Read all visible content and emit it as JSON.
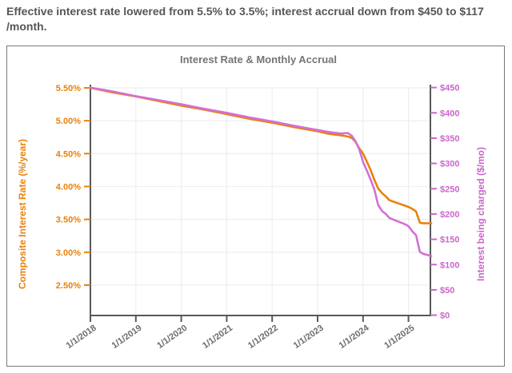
{
  "header": {
    "headline": "Effective interest rate lowered from 5.5% to 3.5%; interest accrual down from $450 to $117 /month."
  },
  "colors": {
    "rate": "#E8820C",
    "accrual_text": "#CB66CB",
    "accrual_line": "#D46FD4",
    "chart_title": "#757575",
    "axis": "#58585A",
    "grid": "#EFEFEF",
    "x_tick": "#6B6B6B",
    "headline": "#55565A",
    "card_border": "#7A7A7A"
  },
  "chart_data": {
    "type": "line",
    "title": "Interest Rate & Monthly Accrual",
    "legend": "none",
    "grid": "on",
    "x_axis": {
      "tick_values": [
        2018,
        2019,
        2020,
        2021,
        2022,
        2023,
        2024,
        2025
      ],
      "tick_labels": [
        "1/1/2018",
        "1/1/2019",
        "1/1/2020",
        "1/1/2021",
        "1/1/2022",
        "1/1/2023",
        "1/1/2024",
        "1/1/2025"
      ],
      "range": [
        "2018-01",
        "2025-07"
      ]
    },
    "left_axis": {
      "label": "Composite Interest Rate (%/year)",
      "tick_values": [
        5.5,
        5.0,
        4.5,
        4.0,
        3.5,
        3.0,
        2.5
      ],
      "tick_labels": [
        "5.50%",
        "5.00%",
        "4.50%",
        "4.00%",
        "3.50%",
        "3.00%",
        "2.50%"
      ]
    },
    "right_axis": {
      "label": "Interest being charged ($/mo)",
      "tick_values": [
        450,
        400,
        350,
        300,
        250,
        200,
        150,
        100,
        50,
        0
      ],
      "tick_labels": [
        "$450",
        "$400",
        "$350",
        "$300",
        "$250",
        "$200",
        "$150",
        "$100",
        "$50",
        "$0"
      ],
      "range": [
        0,
        450
      ]
    },
    "x_dates": [
      "2018-01",
      "2018-07",
      "2019-01",
      "2019-07",
      "2020-01",
      "2020-07",
      "2021-01",
      "2021-07",
      "2022-01",
      "2022-07",
      "2023-01",
      "2023-04",
      "2023-07",
      "2023-09",
      "2023-10",
      "2023-11",
      "2023-12",
      "2024-01",
      "2024-02",
      "2024-03",
      "2024-04",
      "2024-05",
      "2024-06",
      "2024-07",
      "2024-08",
      "2024-09",
      "2024-10",
      "2024-11",
      "2024-12",
      "2025-01",
      "2025-02",
      "2025-03",
      "2025-04",
      "2025-05",
      "2025-06",
      "2025-07"
    ],
    "series": [
      {
        "name": "Composite Interest Rate (%/year)",
        "axis": "left",
        "values": [
          5.5,
          5.43,
          5.37,
          5.3,
          5.23,
          5.17,
          5.1,
          5.03,
          4.97,
          4.9,
          4.84,
          4.8,
          4.78,
          4.76,
          4.74,
          4.68,
          4.58,
          4.5,
          4.38,
          4.25,
          4.1,
          3.97,
          3.9,
          3.85,
          3.79,
          3.77,
          3.75,
          3.73,
          3.71,
          3.69,
          3.66,
          3.62,
          3.45,
          3.44,
          3.44,
          3.44
        ]
      },
      {
        "name": "Interest being charged ($/mo)",
        "axis": "right",
        "values": [
          450,
          442,
          433,
          425,
          417,
          408,
          400,
          391,
          383,
          374,
          366,
          362,
          359,
          360,
          355,
          344,
          328,
          303,
          286,
          268,
          248,
          218,
          206,
          200,
          192,
          189,
          186,
          183,
          180,
          176,
          166,
          158,
          125,
          121,
          119,
          117
        ]
      }
    ]
  }
}
